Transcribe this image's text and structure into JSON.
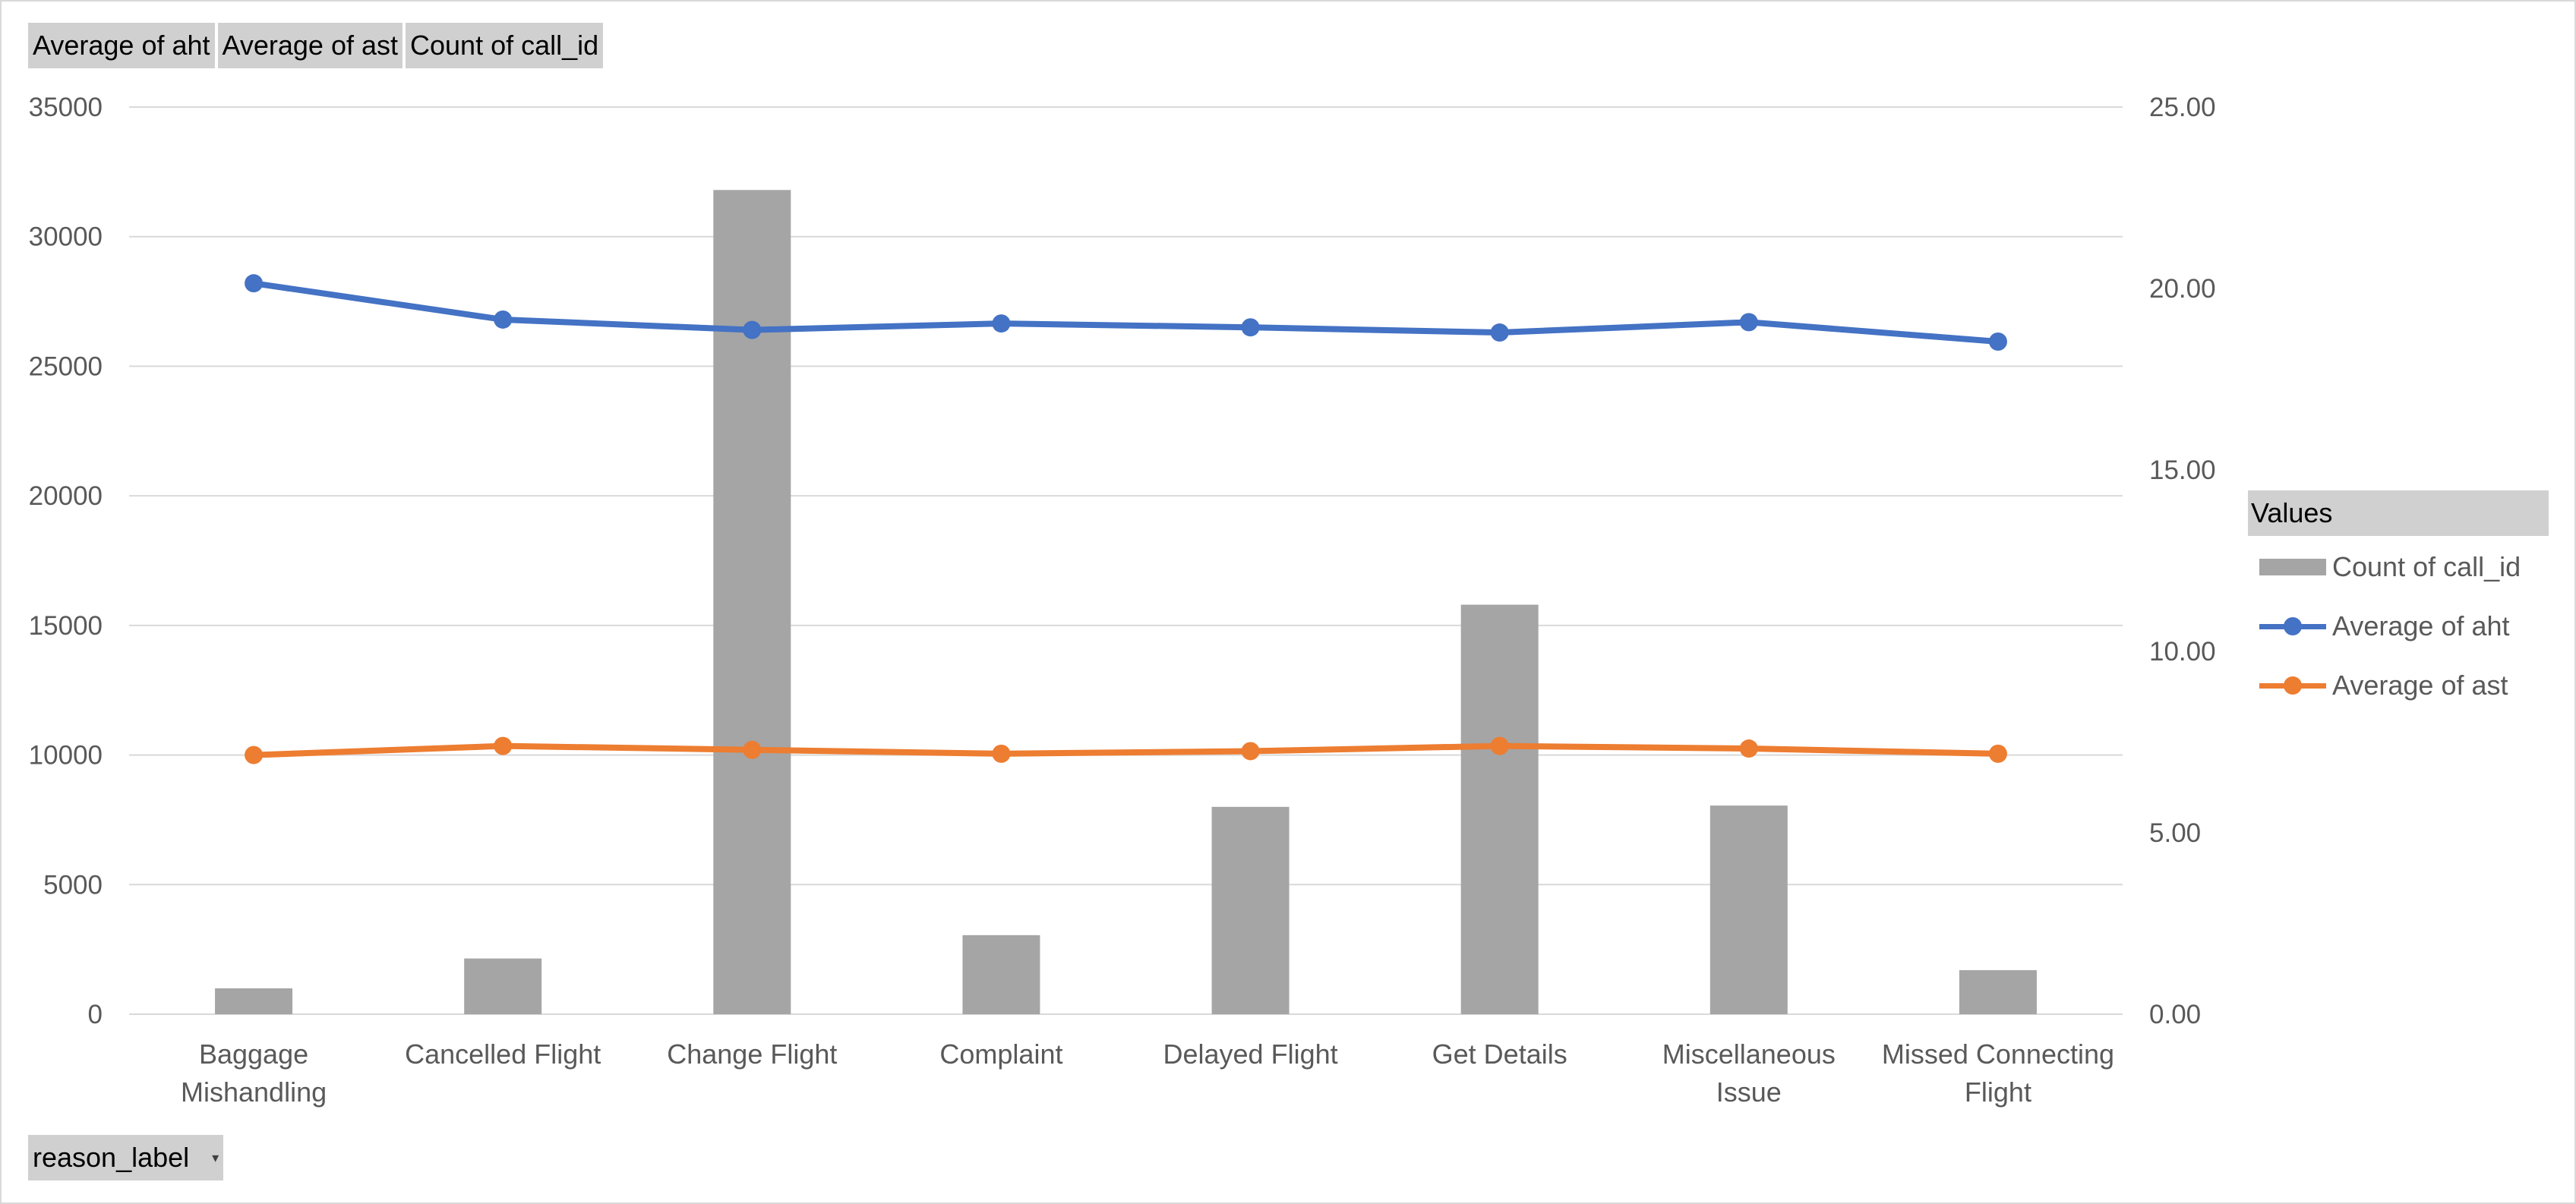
{
  "field_buttons": [
    "Average of aht",
    "Average of ast",
    "Count of call_id"
  ],
  "axis_button": "reason_label",
  "legend": {
    "title": "Values",
    "items": [
      {
        "name": "Count of call_id",
        "kind": "bar"
      },
      {
        "name": "Average of aht",
        "kind": "line"
      },
      {
        "name": "Average of ast",
        "kind": "line"
      }
    ]
  },
  "colors": {
    "bar": "#a5a5a5",
    "aht": "#4472c4",
    "ast": "#ed7d31",
    "grid": "#d9d9d9"
  },
  "chart_data": {
    "type": "bar",
    "categories": [
      [
        "Baggage",
        "Mishandling"
      ],
      [
        "Cancelled Flight"
      ],
      [
        "Change Flight"
      ],
      [
        "Complaint"
      ],
      [
        "Delayed Flight"
      ],
      [
        "Get Details"
      ],
      [
        "Miscellaneous",
        "Issue"
      ],
      [
        "Missed Connecting",
        "Flight"
      ]
    ],
    "series": [
      {
        "name": "Count of call_id",
        "type": "bar",
        "axis": "primary",
        "values": [
          1000,
          2150,
          31800,
          3050,
          8000,
          15800,
          8050,
          1700
        ]
      },
      {
        "name": "Average of aht",
        "type": "line",
        "axis": "primary",
        "values": [
          28200,
          26800,
          26400,
          26650,
          26500,
          26300,
          26700,
          25950
        ]
      },
      {
        "name": "Average of ast",
        "type": "line",
        "axis": "primary",
        "values": [
          10000,
          10350,
          10200,
          10050,
          10150,
          10350,
          10250,
          10050
        ]
      }
    ],
    "y_primary": {
      "min": 0,
      "max": 35000,
      "ticks": [
        "0",
        "5000",
        "10000",
        "15000",
        "20000",
        "25000",
        "30000",
        "35000"
      ]
    },
    "y_secondary": {
      "min": 0,
      "max": 25,
      "ticks": [
        "0.00",
        "5.00",
        "10.00",
        "15.00",
        "20.00",
        "25.00"
      ]
    },
    "grid": true,
    "legend_position": "right"
  }
}
